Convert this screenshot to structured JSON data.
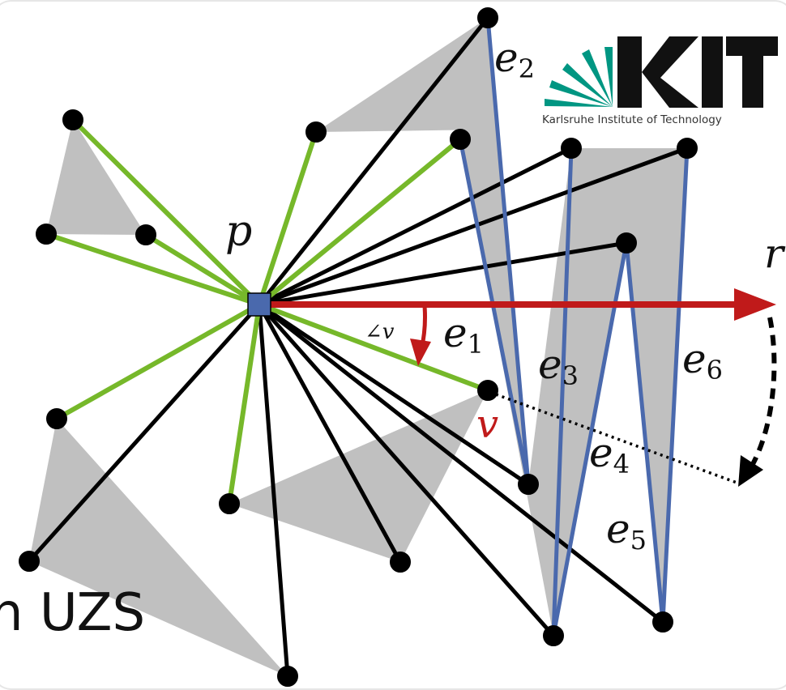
{
  "labels": {
    "p": "p",
    "r": "r",
    "v": "v",
    "angle": "∠v",
    "ccw_text": "n UZS",
    "edge_letter": "e",
    "e1": "1",
    "e2": "2",
    "e3": "3",
    "e4": "4",
    "e5": "5",
    "e6": "6"
  },
  "logo": {
    "wordmark": "KIT",
    "caption": "Karlsruhe Institute of Technology"
  },
  "colors": {
    "green": "#76b82a",
    "blue": "#4a69ad",
    "red": "#c01a1a",
    "gray": "#c0c0c0",
    "kit_green": "#009682",
    "black": "#000000"
  }
}
